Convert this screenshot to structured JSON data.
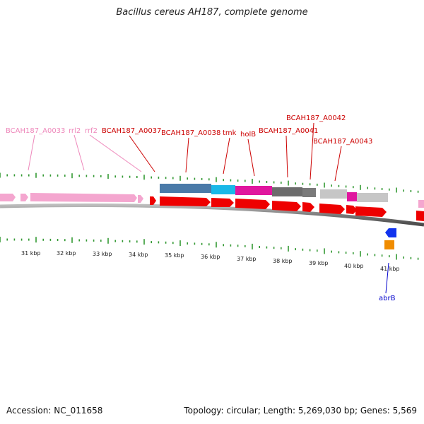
{
  "title": "Bacillus cereus AH187, complete genome",
  "footer": {
    "accession": "Accession: NC_011658",
    "summary": "Topology: circular; Length: 5,269,030 bp; Genes: 5,569"
  },
  "colors": {
    "pink_label": "#ee88bb",
    "red_label": "#cc0000",
    "blue_label": "#0000cc",
    "tick_green": "#339933",
    "cds_red": "#ee0000",
    "rna_pink": "#f4a6cf"
  },
  "scale_labels": [
    "31 kbp",
    "32 kbp",
    "33 kbp",
    "34 kbp",
    "35 kbp",
    "36 kbp",
    "37 kbp",
    "38 kbp",
    "39 kbp",
    "40 kbp",
    "41 kbp"
  ],
  "labels_upper": [
    {
      "text": "BCAH187_A0033",
      "kind": "pink"
    },
    {
      "text": "rrl2",
      "kind": "pink"
    },
    {
      "text": "rrf2",
      "kind": "pink"
    },
    {
      "text": "BCAH187_A0037",
      "kind": "red"
    },
    {
      "text": "BCAH187_A0038",
      "kind": "red"
    },
    {
      "text": "tmk",
      "kind": "red"
    },
    {
      "text": "holB",
      "kind": "red"
    },
    {
      "text": "BCAH187_A0041",
      "kind": "red"
    },
    {
      "text": "BCAH187_A0042",
      "kind": "red"
    },
    {
      "text": "BCAH187_A0043",
      "kind": "red"
    }
  ],
  "labels_lower": [
    {
      "text": "abrB",
      "kind": "blue"
    }
  ]
}
